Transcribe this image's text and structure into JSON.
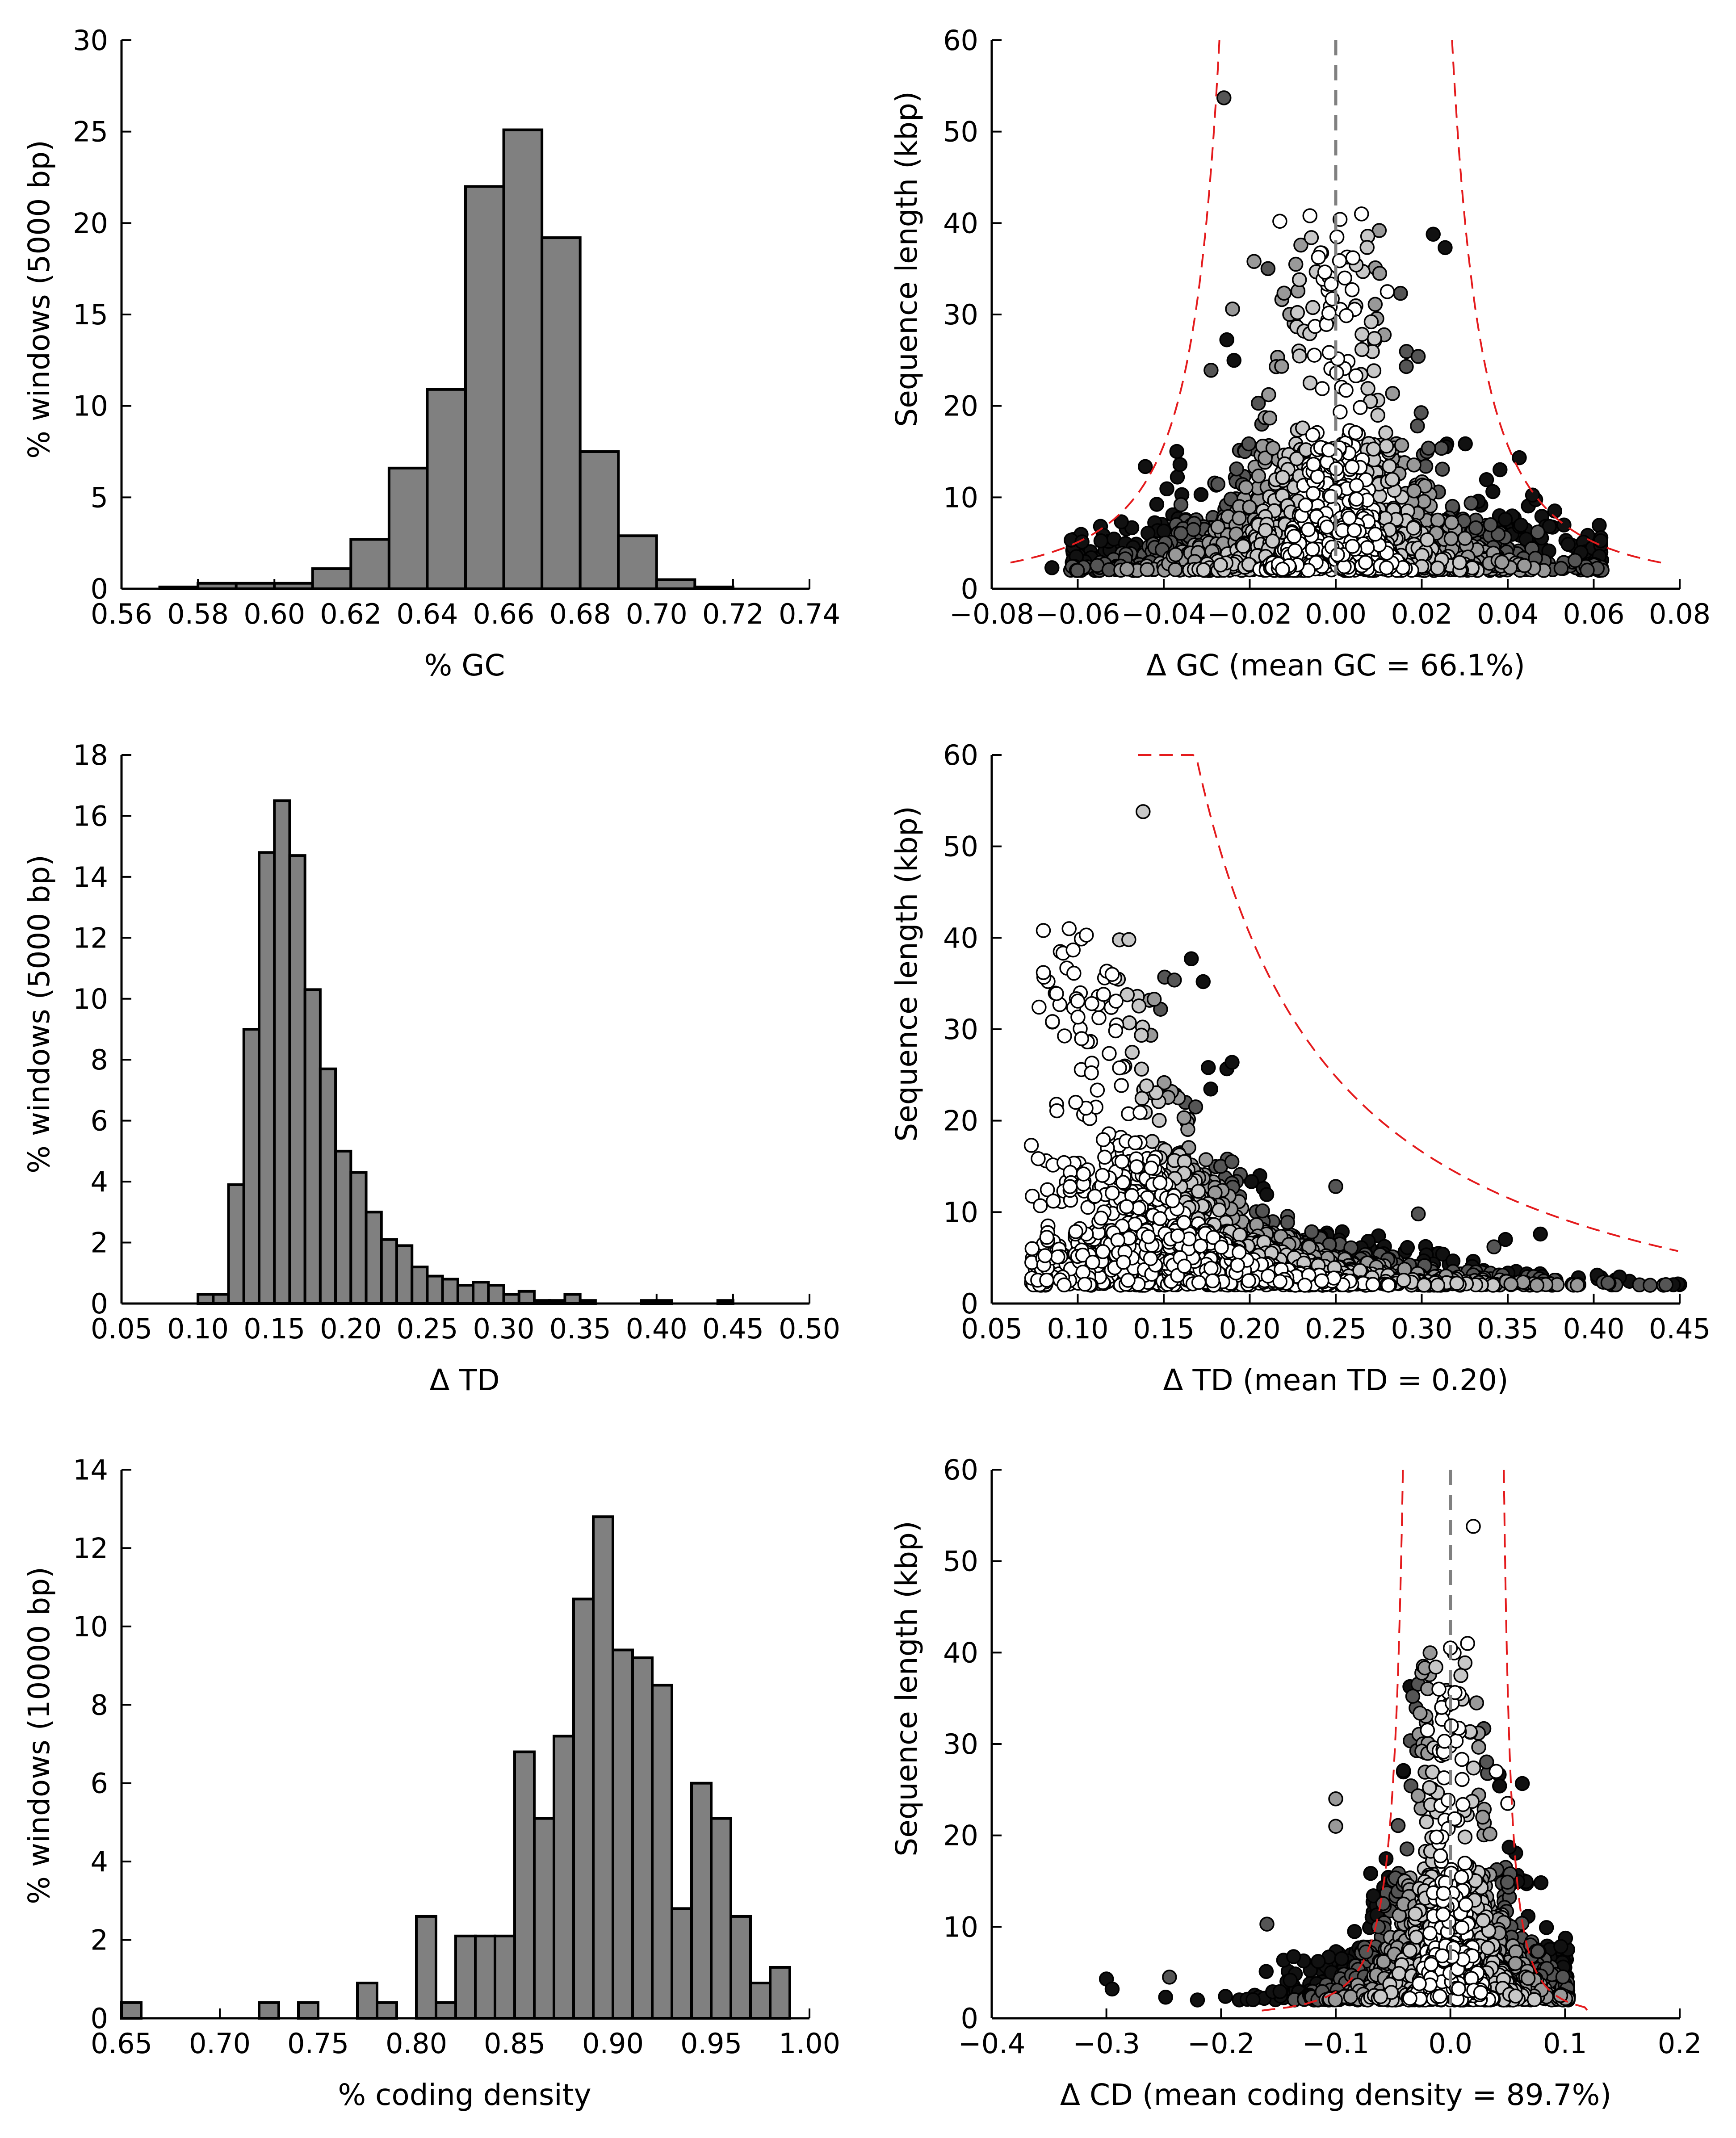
{
  "colors": {
    "bar": "#808080",
    "curve": "#e41a1c",
    "zero_line": "#808080",
    "point_levels": [
      "#ffffff",
      "#c8c8c8",
      "#999999",
      "#555555",
      "#111111"
    ]
  },
  "chart_data": [
    {
      "type": "bar",
      "xlabel": "% GC",
      "ylabel": "% windows (5000 bp)",
      "xlim": [
        0.56,
        0.74
      ],
      "ylim": [
        0,
        30
      ],
      "xticks": [
        "0.56",
        "0.58",
        "0.60",
        "0.62",
        "0.64",
        "0.66",
        "0.68",
        "0.70",
        "0.72",
        "0.74"
      ],
      "yticks": [
        "0",
        "5",
        "10",
        "15",
        "20",
        "25",
        "30"
      ],
      "bin_edges": [
        0.57,
        0.58,
        0.59,
        0.6,
        0.61,
        0.62,
        0.63,
        0.64,
        0.65,
        0.66,
        0.67,
        0.68,
        0.69,
        0.7,
        0.71,
        0.72
      ],
      "values": [
        0.1,
        0.3,
        0.3,
        0.3,
        1.1,
        2.7,
        6.6,
        10.9,
        22.0,
        25.1,
        19.2,
        7.5,
        2.9,
        0.5,
        0.1
      ]
    },
    {
      "type": "scatter",
      "xlabel": "Δ GC (mean GC = 66.1%)",
      "ylabel": "Sequence length (kbp)",
      "xlim": [
        -0.08,
        0.08
      ],
      "ylim": [
        0,
        60
      ],
      "xticks": [
        "−0.08",
        "−0.06",
        "−0.04",
        "−0.02",
        "0.00",
        "0.02",
        "0.04",
        "0.06",
        "0.08"
      ],
      "yticks": [
        "0",
        "10",
        "20",
        "30",
        "40",
        "50",
        "60"
      ],
      "zero_line": 0,
      "curve": {
        "k": 0.105,
        "d_min": 0.0135
      },
      "points_sample": [
        {
          "x": -0.026,
          "y": 53.7,
          "level": 3
        },
        {
          "x": -0.013,
          "y": 40.2,
          "level": 0
        },
        {
          "x": -0.006,
          "y": 40.8,
          "level": 0
        },
        {
          "x": 0.006,
          "y": 41.0,
          "level": 0
        },
        {
          "x": 0.001,
          "y": 40.4,
          "level": 0
        },
        {
          "x": -0.019,
          "y": 35.8,
          "level": 2
        },
        {
          "x": -0.024,
          "y": 30.6,
          "level": 2
        },
        {
          "x": -0.029,
          "y": 23.9,
          "level": 3
        },
        {
          "x": 0.012,
          "y": 32.5,
          "level": 0
        },
        {
          "x": 0.004,
          "y": 36.2,
          "level": 0
        },
        {
          "x": -0.066,
          "y": 2.3,
          "level": 4
        },
        {
          "x": -0.056,
          "y": 2.0,
          "level": 4
        },
        {
          "x": 0.059,
          "y": 2.1,
          "level": 4
        },
        {
          "x": 0.047,
          "y": 6.2,
          "level": 3
        },
        {
          "x": -0.036,
          "y": 9.2,
          "level": 3
        },
        {
          "x": 0.036,
          "y": 7.0,
          "level": 3
        }
      ]
    },
    {
      "type": "bar",
      "xlabel": "Δ TD",
      "ylabel": "% windows (5000 bp)",
      "xlim": [
        0.05,
        0.5
      ],
      "ylim": [
        0,
        18
      ],
      "xticks": [
        "0.05",
        "0.10",
        "0.15",
        "0.20",
        "0.25",
        "0.30",
        "0.35",
        "0.40",
        "0.45",
        "0.50"
      ],
      "yticks": [
        "0",
        "2",
        "4",
        "6",
        "8",
        "10",
        "12",
        "14",
        "16",
        "18"
      ],
      "bin_edges": [
        0.1,
        0.11,
        0.12,
        0.13,
        0.14,
        0.15,
        0.16,
        0.17,
        0.18,
        0.19,
        0.2,
        0.21,
        0.22,
        0.23,
        0.24,
        0.25,
        0.26,
        0.27,
        0.28,
        0.29,
        0.3,
        0.31,
        0.32,
        0.33,
        0.34,
        0.35,
        0.36,
        0.37,
        0.38,
        0.39,
        0.4,
        0.41,
        0.42,
        0.43,
        0.44,
        0.45
      ],
      "values": [
        0.3,
        0.3,
        3.9,
        9.0,
        14.8,
        16.5,
        14.7,
        10.3,
        7.7,
        5.0,
        4.3,
        3.0,
        2.1,
        1.9,
        1.2,
        0.9,
        0.8,
        0.6,
        0.7,
        0.6,
        0.3,
        0.4,
        0.1,
        0.1,
        0.3,
        0.1,
        0,
        0,
        0,
        0.1,
        0.1,
        0,
        0,
        0,
        0.1
      ]
    },
    {
      "type": "scatter",
      "xlabel": "Δ TD (mean TD = 0.20)",
      "ylabel": "Sequence length (kbp)",
      "xlim": [
        0.05,
        0.45
      ],
      "ylim": [
        0,
        60
      ],
      "xticks": [
        "0.05",
        "0.10",
        "0.15",
        "0.20",
        "0.25",
        "0.30",
        "0.35",
        "0.40",
        "0.45"
      ],
      "yticks": [
        "0",
        "10",
        "20",
        "30",
        "40",
        "50",
        "60"
      ],
      "curve": {
        "k": 5.1,
        "t_min": 0.085,
        "from": 0.135,
        "to": 0.45
      },
      "points_sample": [
        {
          "x": 0.138,
          "y": 53.8,
          "level": 1
        },
        {
          "x": 0.08,
          "y": 40.8,
          "level": 0
        },
        {
          "x": 0.095,
          "y": 41.0,
          "level": 0
        },
        {
          "x": 0.105,
          "y": 40.3,
          "level": 0
        },
        {
          "x": 0.08,
          "y": 36.2,
          "level": 0
        },
        {
          "x": 0.12,
          "y": 36.0,
          "level": 0
        },
        {
          "x": 0.13,
          "y": 30.7,
          "level": 1
        },
        {
          "x": 0.14,
          "y": 23.8,
          "level": 1
        },
        {
          "x": 0.073,
          "y": 17.3,
          "level": 0
        },
        {
          "x": 0.369,
          "y": 7.6,
          "level": 4
        },
        {
          "x": 0.415,
          "y": 2.9,
          "level": 4
        },
        {
          "x": 0.402,
          "y": 3.1,
          "level": 4
        },
        {
          "x": 0.342,
          "y": 6.2,
          "level": 3
        },
        {
          "x": 0.298,
          "y": 9.8,
          "level": 3
        },
        {
          "x": 0.25,
          "y": 12.8,
          "level": 3
        }
      ]
    },
    {
      "type": "bar",
      "xlabel": "% coding density",
      "ylabel": "% windows (10000 bp)",
      "xlim": [
        0.65,
        1.0
      ],
      "ylim": [
        0,
        14
      ],
      "xticks": [
        "0.65",
        "0.70",
        "0.75",
        "0.80",
        "0.85",
        "0.90",
        "0.95",
        "1.00"
      ],
      "yticks": [
        "0",
        "2",
        "4",
        "6",
        "8",
        "10",
        "12",
        "14"
      ],
      "bin_edges": [
        0.65,
        0.66,
        0.67,
        0.68,
        0.69,
        0.7,
        0.71,
        0.72,
        0.73,
        0.74,
        0.75,
        0.76,
        0.77,
        0.78,
        0.79,
        0.8,
        0.81,
        0.82,
        0.83,
        0.84,
        0.85,
        0.86,
        0.87,
        0.88,
        0.89,
        0.9,
        0.91,
        0.92,
        0.93,
        0.94,
        0.95,
        0.96,
        0.97,
        0.98,
        0.99
      ],
      "values": [
        0.4,
        0,
        0,
        0,
        0,
        0,
        0,
        0.4,
        0,
        0.4,
        0,
        0,
        0.9,
        0.4,
        0,
        2.6,
        0.4,
        2.1,
        2.1,
        2.1,
        6.8,
        5.1,
        7.2,
        10.7,
        12.8,
        9.4,
        9.2,
        8.5,
        2.8,
        6.0,
        5.1,
        2.6,
        0.9,
        1.3
      ]
    },
    {
      "type": "scatter",
      "xlabel": "Δ CD (mean coding density = 89.7%)",
      "ylabel": "Sequence length (kbp)",
      "xlim": [
        -0.4,
        0.2
      ],
      "ylim": [
        0,
        60
      ],
      "xticks": [
        "−0.4",
        "−0.3",
        "−0.2",
        "−0.1",
        "0.0",
        "0.1",
        "0.2"
      ],
      "yticks": [
        "0",
        "10",
        "20",
        "30",
        "40",
        "50",
        "60"
      ],
      "zero_line": 0,
      "curve": {
        "k": 1.95,
        "d_min": 0.025
      },
      "points_sample": [
        {
          "x": 0.02,
          "y": 53.8,
          "level": 0
        },
        {
          "x": 0.015,
          "y": 41.0,
          "level": 0
        },
        {
          "x": 0.0,
          "y": 40.5,
          "level": 0
        },
        {
          "x": -0.01,
          "y": 36.0,
          "level": 0
        },
        {
          "x": -0.02,
          "y": 31.5,
          "level": 0
        },
        {
          "x": -0.1,
          "y": 24.0,
          "level": 2
        },
        {
          "x": -0.1,
          "y": 21.0,
          "level": 2
        },
        {
          "x": -0.3,
          "y": 4.3,
          "level": 4
        },
        {
          "x": -0.295,
          "y": 3.2,
          "level": 4
        },
        {
          "x": -0.245,
          "y": 4.5,
          "level": 3
        },
        {
          "x": -0.16,
          "y": 10.3,
          "level": 3
        },
        {
          "x": 0.04,
          "y": 27.0,
          "level": 0
        },
        {
          "x": 0.05,
          "y": 23.5,
          "level": 0
        }
      ]
    }
  ]
}
